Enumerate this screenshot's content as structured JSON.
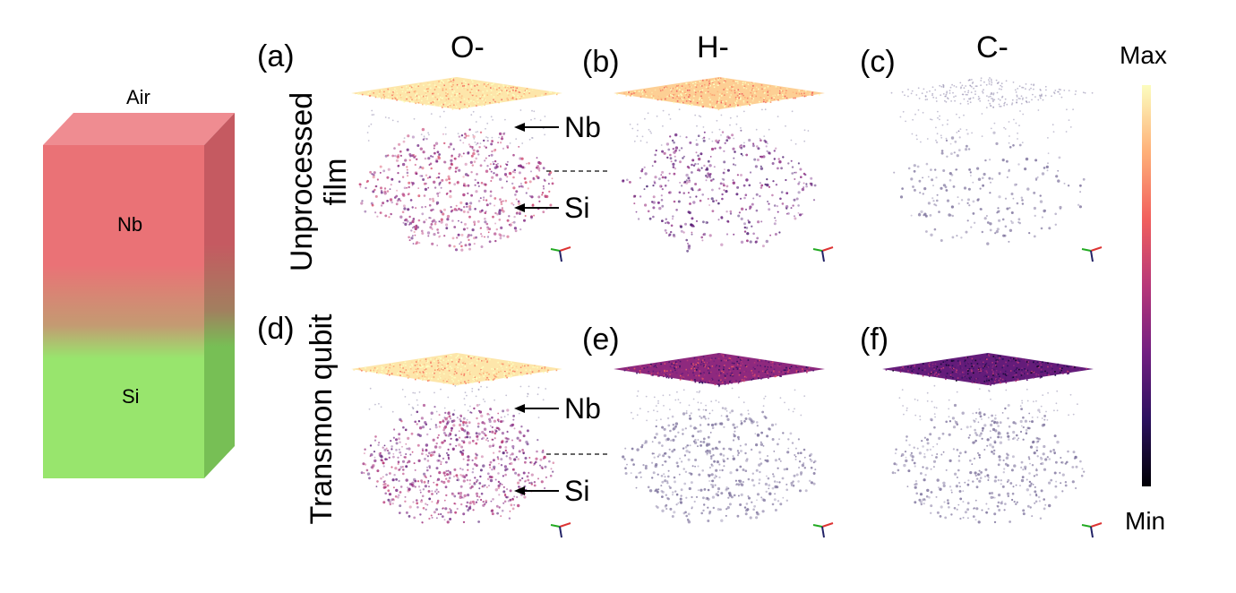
{
  "layer_stack": {
    "top_label": "Air",
    "layers": [
      {
        "label": "Nb",
        "color": "#ea7276"
      },
      {
        "label": "Si",
        "color": "#98e56d"
      }
    ]
  },
  "rows": [
    {
      "label_line1": "Unprocessed",
      "label_line2": "film"
    },
    {
      "label_line1": "Transmon qubit",
      "label_line2": ""
    }
  ],
  "columns": [
    {
      "header": "O-"
    },
    {
      "header": "H-"
    },
    {
      "header": "C-"
    }
  ],
  "panels": [
    {
      "id": "(a)",
      "row": 0,
      "col": 0,
      "top_level": 0.95,
      "sub_level": 0.55,
      "sub_density": 0.85
    },
    {
      "id": "(b)",
      "row": 0,
      "col": 1,
      "top_level": 0.9,
      "sub_level": 0.4,
      "sub_density": 0.55
    },
    {
      "id": "(c)",
      "row": 0,
      "col": 2,
      "top_level": 0.05,
      "sub_level": 0.05,
      "sub_density": 0.3
    },
    {
      "id": "(d)",
      "row": 1,
      "col": 0,
      "top_level": 0.95,
      "sub_level": 0.5,
      "sub_density": 1.0
    },
    {
      "id": "(e)",
      "row": 1,
      "col": 1,
      "top_level": 0.4,
      "sub_level": 0.05,
      "sub_density": 0.7
    },
    {
      "id": "(f)",
      "row": 1,
      "col": 2,
      "top_level": 0.3,
      "sub_level": 0.05,
      "sub_density": 0.6
    }
  ],
  "annotations": {
    "nb_label": "Nb",
    "si_label": "Si"
  },
  "colorbar": {
    "max_label": "Max",
    "min_label": "Min",
    "colors": [
      "#000004",
      "#2c115f",
      "#721f81",
      "#b73779",
      "#f1605d",
      "#feb078",
      "#fcfdbf"
    ]
  }
}
